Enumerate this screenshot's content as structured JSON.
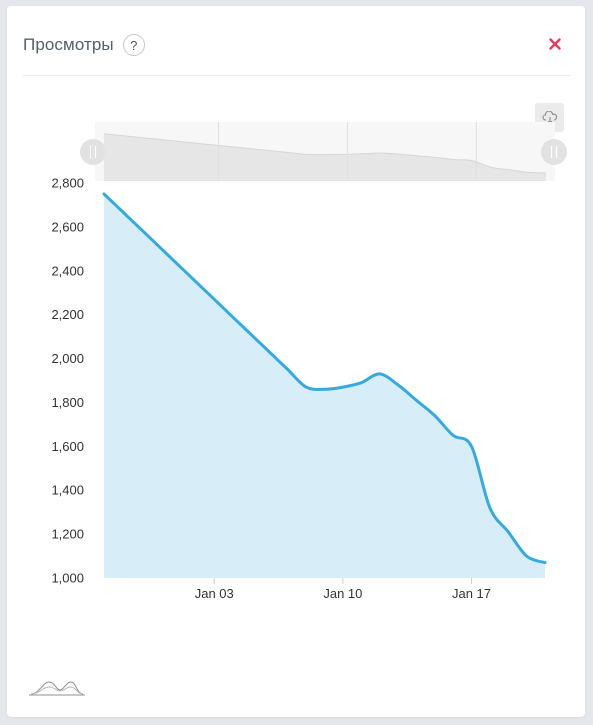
{
  "header": {
    "title": "Просмотры",
    "help_label": "?"
  },
  "colors": {
    "line": "#34aadf",
    "area": "#d7eef9",
    "close": "#e8395d",
    "navigator_fill": "#e6e6e6"
  },
  "icons": {
    "close": "close-icon",
    "export": "cloud-download-icon",
    "chart_type": "area-chart-icon"
  },
  "chart_data": {
    "type": "area",
    "title": "",
    "xlabel": "",
    "ylabel": "",
    "x_ticks": [
      "Jan 03",
      "Jan 10",
      "Jan 17"
    ],
    "y_ticks": [
      1000,
      1200,
      1400,
      1600,
      1800,
      2000,
      2200,
      2400,
      2600,
      2800
    ],
    "y_tick_labels": [
      "1,000",
      "1,200",
      "1,400",
      "1,600",
      "1,800",
      "2,000",
      "2,200",
      "2,400",
      "2,600",
      "2,800"
    ],
    "ylim": [
      1000,
      2800
    ],
    "x": [
      "Dec 28",
      "Dec 29",
      "Dec 30",
      "Dec 31",
      "Jan 01",
      "Jan 02",
      "Jan 03",
      "Jan 04",
      "Jan 05",
      "Jan 06",
      "Jan 07",
      "Jan 08",
      "Jan 09",
      "Jan 10",
      "Jan 11",
      "Jan 12",
      "Jan 13",
      "Jan 14",
      "Jan 15",
      "Jan 16",
      "Jan 17",
      "Jan 18",
      "Jan 19",
      "Jan 20",
      "Jan 21"
    ],
    "series": [
      {
        "values": [
          2750,
          2670,
          2590,
          2510,
          2430,
          2350,
          2270,
          2190,
          2110,
          2030,
          1950,
          1870,
          1860,
          1870,
          1890,
          1930,
          1880,
          1810,
          1740,
          1650,
          1600,
          1320,
          1210,
          1100,
          1070
        ]
      }
    ],
    "navigator": true,
    "grid": false,
    "legend": "none"
  }
}
